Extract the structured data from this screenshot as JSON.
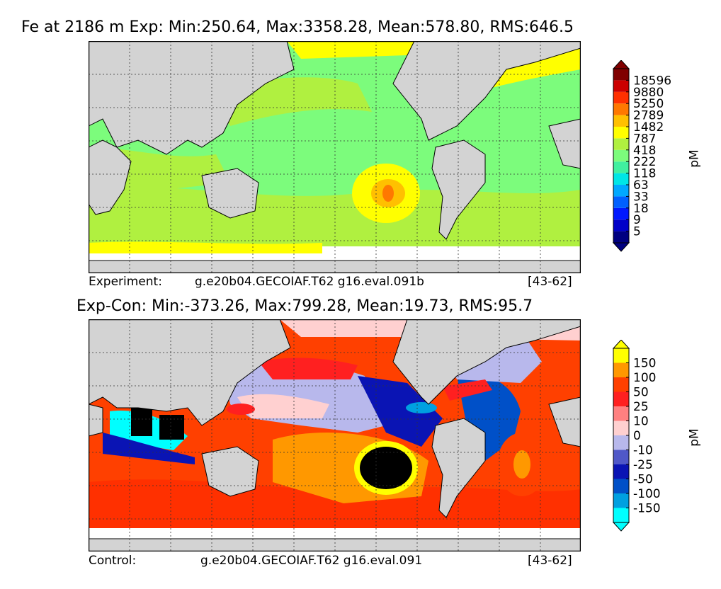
{
  "chart_data": [
    {
      "type": "heatmap",
      "title": "Fe at 2186 m Exp: Min:250.64, Max:3358.28, Mean:578.80, RMS:646.5",
      "caption": {
        "label": "Experiment:",
        "case": "g.e20b04.GECOIAF.T62 g16.eval.091b",
        "years": "[43-62]"
      },
      "colorbar": {
        "unit": "pM",
        "levels": [
          "5",
          "9",
          "18",
          "33",
          "63",
          "118",
          "222",
          "418",
          "787",
          "1482",
          "2789",
          "5250",
          "9880",
          "18596"
        ],
        "colors": [
          "#000080",
          "#0000c8",
          "#0018ff",
          "#0060ff",
          "#00a8ff",
          "#00e6e6",
          "#40f0a0",
          "#7cfc7c",
          "#b0f040",
          "#ffff00",
          "#ffc000",
          "#ff7800",
          "#ff3000",
          "#cc0000",
          "#800000"
        ]
      },
      "summary": {
        "min": 250.64,
        "max": 3358.28,
        "mean": 578.8,
        "rms": 646.5
      }
    },
    {
      "type": "heatmap",
      "title": "Exp-Con: Min:-373.26, Max:799.28, Mean:19.73, RMS:95.7",
      "caption": {
        "label": "Control:",
        "case": "g.e20b04.GECOIAF.T62 g16.eval.091",
        "years": "[43-62]"
      },
      "colorbar": {
        "unit": "pM",
        "levels": [
          "-150",
          "-100",
          "-50",
          "-25",
          "-10",
          "0",
          "10",
          "25",
          "50",
          "100",
          "150"
        ],
        "colors": [
          "#00ffff",
          "#00a0e0",
          "#0050c8",
          "#0a14b4",
          "#5058c8",
          "#b8b8ec",
          "#ffd0d0",
          "#ff8080",
          "#ff2020",
          "#ff4000",
          "#ff9800",
          "#ffff00"
        ]
      },
      "summary": {
        "min": -373.26,
        "max": 799.28,
        "mean": 19.73,
        "rms": 95.7
      }
    }
  ]
}
